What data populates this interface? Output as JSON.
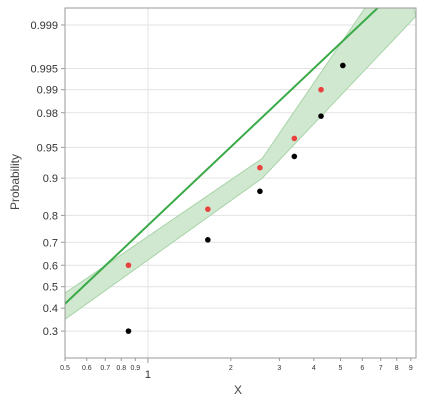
{
  "chart_data": {
    "type": "scatter",
    "title": "",
    "xlabel": "X",
    "ylabel": "Probability",
    "x_scale": "log",
    "y_scale": "probability",
    "xlim": [
      0.5,
      9.4
    ],
    "ylim": [
      0.2,
      0.9995
    ],
    "grid": true,
    "x_tick_labels": [
      {
        "value": 0.5,
        "label": "0.5",
        "size": "small"
      },
      {
        "value": 0.6,
        "label": "0.6",
        "size": "small"
      },
      {
        "value": 0.7,
        "label": "0.7",
        "size": "small"
      },
      {
        "value": 0.8,
        "label": "0.8",
        "size": "small"
      },
      {
        "value": 0.9,
        "label": "0.9",
        "size": "small"
      },
      {
        "value": 1,
        "label": "1",
        "size": "big"
      },
      {
        "value": 2,
        "label": "2",
        "size": "small"
      },
      {
        "value": 3,
        "label": "3",
        "size": "small"
      },
      {
        "value": 4,
        "label": "4",
        "size": "small"
      },
      {
        "value": 5,
        "label": "5",
        "size": "small"
      },
      {
        "value": 6,
        "label": "6",
        "size": "small"
      },
      {
        "value": 7,
        "label": "7",
        "size": "small"
      },
      {
        "value": 8,
        "label": "8",
        "size": "small"
      },
      {
        "value": 9,
        "label": "9",
        "size": "small"
      }
    ],
    "y_tick_labels": [
      {
        "value": 0.3,
        "label": "0.3"
      },
      {
        "value": 0.4,
        "label": "0.4"
      },
      {
        "value": 0.5,
        "label": "0.5"
      },
      {
        "value": 0.6,
        "label": "0.6"
      },
      {
        "value": 0.7,
        "label": "0.7"
      },
      {
        "value": 0.8,
        "label": "0.8"
      },
      {
        "value": 0.9,
        "label": "0.9"
      },
      {
        "value": 0.95,
        "label": "0.95"
      },
      {
        "value": 0.98,
        "label": "0.98"
      },
      {
        "value": 0.99,
        "label": "0.99"
      },
      {
        "value": 0.995,
        "label": "0.995"
      },
      {
        "value": 0.999,
        "label": "0.999"
      }
    ],
    "series": [
      {
        "color": "#000000",
        "points": [
          {
            "x": 0.85,
            "y": 0.3
          },
          {
            "x": 1.65,
            "y": 0.71
          },
          {
            "x": 2.55,
            "y": 0.87
          },
          {
            "x": 3.4,
            "y": 0.938
          },
          {
            "x": 4.25,
            "y": 0.978
          },
          {
            "x": 5.1,
            "y": 0.9955
          }
        ]
      },
      {
        "color": "#e8413e",
        "points": [
          {
            "x": 0.85,
            "y": 0.6
          },
          {
            "x": 1.65,
            "y": 0.82
          },
          {
            "x": 2.55,
            "y": 0.92
          },
          {
            "x": 3.4,
            "y": 0.96
          },
          {
            "x": 4.25,
            "y": 0.99
          }
        ]
      }
    ],
    "fit_line": {
      "color": "#3aaa48",
      "points": [
        {
          "x": 0.5,
          "y": 0.42
        },
        {
          "x": 9.4,
          "y": 0.9999
        }
      ]
    },
    "confidence_band": {
      "fill": "#cfe8cf",
      "upper": [
        {
          "x": 0.5,
          "y": 0.47
        },
        {
          "x": 2.6,
          "y": 0.935
        },
        {
          "x": 8.2,
          "y": 0.99995
        }
      ],
      "lower": [
        {
          "x": 0.5,
          "y": 0.35
        },
        {
          "x": 2.6,
          "y": 0.9
        },
        {
          "x": 9.4,
          "y": 0.9993
        }
      ]
    }
  }
}
